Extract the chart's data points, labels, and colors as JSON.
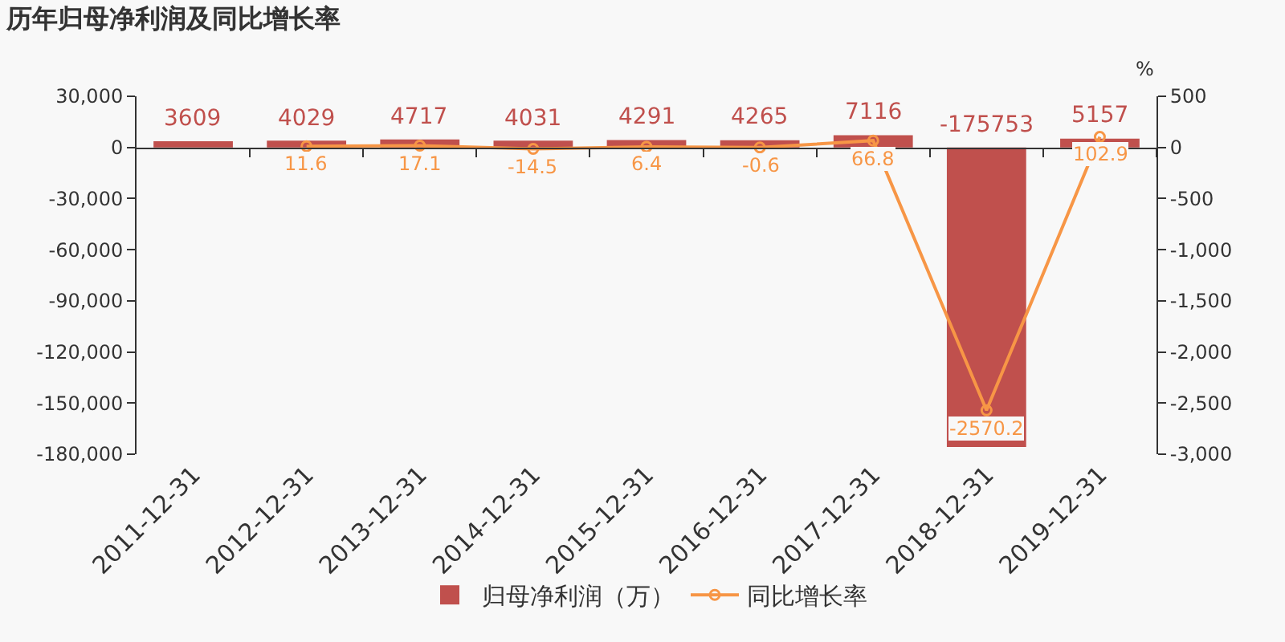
{
  "chart_data": {
    "type": "bar",
    "title": "历年归母净利润及同比增长率",
    "y2label": "%",
    "categories": [
      "2011-12-31",
      "2012-12-31",
      "2013-12-31",
      "2014-12-31",
      "2015-12-31",
      "2016-12-31",
      "2017-12-31",
      "2018-12-31",
      "2019-12-31"
    ],
    "series": [
      {
        "name": "归母净利润（万）",
        "color": "#c0504d",
        "values": [
          3609,
          4029,
          4717,
          4031,
          4291,
          4265,
          7116,
          -175753,
          5157
        ]
      },
      {
        "name": "同比增长率",
        "type": "line",
        "axis": "y2",
        "color": "#f79646",
        "marker": "circle",
        "values": [
          null,
          11.6,
          17.1,
          -14.5,
          6.4,
          -0.6,
          66.8,
          -2570.2,
          102.9
        ]
      }
    ],
    "ylim": [
      -180000,
      30000
    ],
    "yticks": [
      {
        "value": -180000,
        "label": "-180,000"
      },
      {
        "value": -150000,
        "label": "-150,000"
      },
      {
        "value": -120000,
        "label": "-120,000"
      },
      {
        "value": -90000,
        "label": "-90,000"
      },
      {
        "value": -60000,
        "label": "-60,000"
      },
      {
        "value": -30000,
        "label": "-30,000"
      },
      0,
      {
        "value": 30000,
        "label": "30,000"
      }
    ],
    "y2lim": [
      -3000,
      500
    ],
    "y2ticks": [
      {
        "value": -3000,
        "label": "-3,000"
      },
      {
        "value": -2500,
        "label": "-2,500"
      },
      {
        "value": -2000,
        "label": "-2,000"
      },
      {
        "value": -1500,
        "label": "-1,500"
      },
      {
        "value": -1000,
        "label": "-1,000"
      },
      -500,
      0,
      500
    ],
    "data_labels": true,
    "legend": "bottom"
  }
}
